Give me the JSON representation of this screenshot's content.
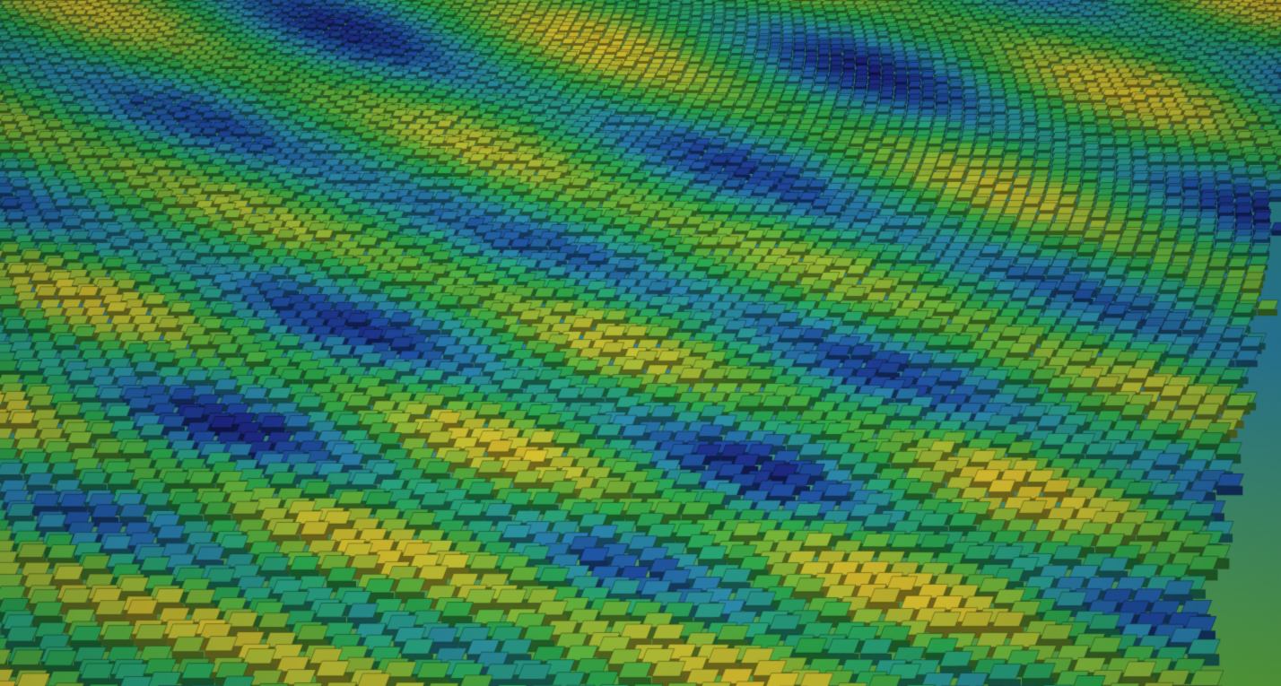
{
  "scene": {
    "subject": "voxel-terrain",
    "palette": [
      "#1c1e7a",
      "#1f4fa0",
      "#2a86a8",
      "#27a07a",
      "#2aa54a",
      "#63b03a",
      "#a9b834",
      "#d4bb2e"
    ]
  }
}
